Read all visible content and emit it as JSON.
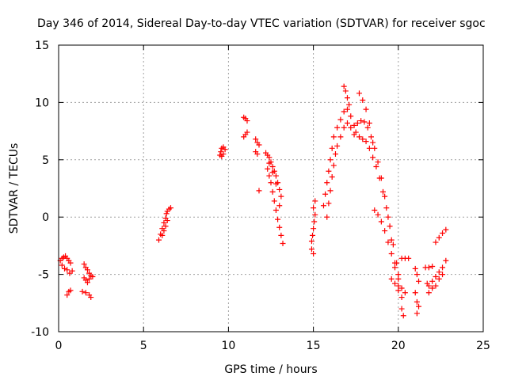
{
  "chart_data": {
    "type": "scatter",
    "title": "Day 346 of 2014, Sidereal Day-to-day VTEC variation (SDTVAR) for receiver sgoc",
    "xlabel": "GPS time / hours",
    "ylabel": "SDTVAR / TECUs",
    "xlim": [
      0,
      25
    ],
    "ylim": [
      -10,
      15
    ],
    "xticks": [
      0,
      5,
      10,
      15,
      20,
      25
    ],
    "yticks": [
      -10,
      -5,
      0,
      5,
      10,
      15
    ],
    "xtick_labels": [
      "0",
      "5",
      "10",
      "15",
      "20",
      "25"
    ],
    "ytick_labels": [
      "-10",
      "-5",
      "0",
      "5",
      "10",
      "15"
    ],
    "grid": true,
    "marker": "+",
    "color": "#ff0000",
    "series": [
      {
        "name": "SDTVAR",
        "points": [
          [
            0.1,
            -3.8
          ],
          [
            0.2,
            -3.6
          ],
          [
            0.3,
            -3.5
          ],
          [
            0.4,
            -3.4
          ],
          [
            0.5,
            -3.6
          ],
          [
            0.6,
            -3.8
          ],
          [
            0.7,
            -4.0
          ],
          [
            0.2,
            -4.2
          ],
          [
            0.35,
            -4.5
          ],
          [
            0.5,
            -4.6
          ],
          [
            0.65,
            -4.9
          ],
          [
            0.8,
            -4.7
          ],
          [
            0.5,
            -6.8
          ],
          [
            0.6,
            -6.5
          ],
          [
            0.7,
            -6.4
          ],
          [
            1.5,
            -4.1
          ],
          [
            1.6,
            -4.4
          ],
          [
            1.7,
            -4.6
          ],
          [
            1.8,
            -4.9
          ],
          [
            1.9,
            -5.1
          ],
          [
            2.0,
            -5.2
          ],
          [
            1.5,
            -5.3
          ],
          [
            1.6,
            -5.5
          ],
          [
            1.7,
            -5.7
          ],
          [
            1.8,
            -5.4
          ],
          [
            1.4,
            -6.5
          ],
          [
            1.6,
            -6.6
          ],
          [
            1.8,
            -6.8
          ],
          [
            1.9,
            -7.0
          ],
          [
            5.9,
            -2.0
          ],
          [
            6.0,
            -1.5
          ],
          [
            6.1,
            -1.0
          ],
          [
            6.2,
            -0.5
          ],
          [
            6.3,
            -0.1
          ],
          [
            6.35,
            0.3
          ],
          [
            6.4,
            0.5
          ],
          [
            6.5,
            0.7
          ],
          [
            6.6,
            0.8
          ],
          [
            6.1,
            -1.6
          ],
          [
            6.2,
            -1.2
          ],
          [
            6.3,
            -0.8
          ],
          [
            6.4,
            -0.3
          ],
          [
            9.5,
            5.4
          ],
          [
            9.55,
            5.7
          ],
          [
            9.6,
            6.0
          ],
          [
            9.7,
            6.1
          ],
          [
            9.8,
            5.9
          ],
          [
            9.6,
            5.3
          ],
          [
            9.7,
            5.5
          ],
          [
            10.9,
            8.7
          ],
          [
            11.0,
            8.6
          ],
          [
            11.1,
            8.4
          ],
          [
            10.9,
            7.0
          ],
          [
            11.0,
            7.2
          ],
          [
            11.1,
            7.4
          ],
          [
            11.6,
            6.8
          ],
          [
            11.7,
            6.5
          ],
          [
            11.8,
            6.3
          ],
          [
            11.6,
            5.7
          ],
          [
            11.7,
            5.5
          ],
          [
            11.8,
            2.3
          ],
          [
            12.2,
            5.6
          ],
          [
            12.3,
            5.4
          ],
          [
            12.4,
            5.2
          ],
          [
            12.5,
            4.8
          ],
          [
            12.6,
            4.4
          ],
          [
            12.7,
            4.0
          ],
          [
            12.8,
            3.6
          ],
          [
            12.9,
            3.0
          ],
          [
            13.0,
            2.4
          ],
          [
            13.1,
            1.8
          ],
          [
            12.3,
            4.2
          ],
          [
            12.4,
            3.6
          ],
          [
            12.5,
            3.0
          ],
          [
            12.6,
            2.2
          ],
          [
            12.7,
            1.4
          ],
          [
            12.8,
            0.6
          ],
          [
            12.9,
            -0.2
          ],
          [
            13.0,
            -0.9
          ],
          [
            13.1,
            -1.6
          ],
          [
            13.2,
            -2.3
          ],
          [
            12.4,
            4.7
          ],
          [
            12.6,
            3.9
          ],
          [
            12.8,
            2.9
          ],
          [
            13.0,
            1.0
          ],
          [
            14.9,
            -2.1
          ],
          [
            14.95,
            -1.6
          ],
          [
            15.0,
            -1.0
          ],
          [
            15.05,
            -0.4
          ],
          [
            15.1,
            0.2
          ],
          [
            15.0,
            0.8
          ],
          [
            15.1,
            1.4
          ],
          [
            14.9,
            -2.8
          ],
          [
            15.0,
            -3.2
          ],
          [
            15.6,
            1.0
          ],
          [
            15.7,
            2.0
          ],
          [
            15.8,
            3.0
          ],
          [
            15.9,
            4.0
          ],
          [
            16.0,
            5.0
          ],
          [
            16.1,
            6.0
          ],
          [
            16.2,
            7.0
          ],
          [
            16.4,
            7.8
          ],
          [
            16.6,
            8.5
          ],
          [
            16.8,
            9.2
          ],
          [
            17.0,
            9.4
          ],
          [
            17.2,
            8.8
          ],
          [
            17.4,
            8.0
          ],
          [
            15.8,
            0.0
          ],
          [
            15.9,
            1.2
          ],
          [
            16.0,
            2.3
          ],
          [
            16.1,
            3.5
          ],
          [
            16.2,
            4.5
          ],
          [
            16.3,
            5.5
          ],
          [
            16.4,
            6.2
          ],
          [
            16.6,
            7.0
          ],
          [
            16.8,
            7.8
          ],
          [
            17.0,
            8.2
          ],
          [
            17.2,
            7.8
          ],
          [
            17.4,
            7.2
          ],
          [
            16.8,
            11.4
          ],
          [
            16.9,
            11.0
          ],
          [
            17.0,
            10.4
          ],
          [
            17.1,
            9.8
          ],
          [
            17.5,
            7.4
          ],
          [
            17.7,
            7.0
          ],
          [
            17.9,
            6.8
          ],
          [
            18.1,
            6.6
          ],
          [
            18.3,
            6.0
          ],
          [
            18.5,
            5.2
          ],
          [
            18.7,
            4.4
          ],
          [
            18.9,
            3.4
          ],
          [
            19.1,
            2.2
          ],
          [
            19.3,
            0.8
          ],
          [
            19.5,
            -0.8
          ],
          [
            19.7,
            -2.4
          ],
          [
            19.9,
            -4.0
          ],
          [
            20.0,
            -5.0
          ],
          [
            17.6,
            8.2
          ],
          [
            17.8,
            8.4
          ],
          [
            18.0,
            8.3
          ],
          [
            18.2,
            7.8
          ],
          [
            18.4,
            7.0
          ],
          [
            18.6,
            6.0
          ],
          [
            18.8,
            4.8
          ],
          [
            19.0,
            3.4
          ],
          [
            19.2,
            1.8
          ],
          [
            19.4,
            0.0
          ],
          [
            19.6,
            -2.0
          ],
          [
            19.8,
            -4.0
          ],
          [
            20.0,
            -6.0
          ],
          [
            20.2,
            -8.0
          ],
          [
            20.3,
            -8.6
          ],
          [
            17.7,
            10.8
          ],
          [
            17.9,
            10.2
          ],
          [
            18.1,
            9.4
          ],
          [
            18.3,
            8.2
          ],
          [
            18.5,
            6.5
          ],
          [
            18.6,
            0.6
          ],
          [
            18.8,
            0.2
          ],
          [
            19.0,
            -0.4
          ],
          [
            19.2,
            -1.2
          ],
          [
            19.4,
            -2.2
          ],
          [
            19.6,
            -3.2
          ],
          [
            19.8,
            -4.4
          ],
          [
            20.0,
            -5.4
          ],
          [
            20.2,
            -6.2
          ],
          [
            20.4,
            -6.6
          ],
          [
            19.6,
            -5.4
          ],
          [
            19.8,
            -5.8
          ],
          [
            20.0,
            -6.4
          ],
          [
            20.2,
            -7.0
          ],
          [
            20.2,
            -3.6
          ],
          [
            20.4,
            -3.6
          ],
          [
            20.6,
            -3.6
          ],
          [
            21.0,
            -4.5
          ],
          [
            21.1,
            -5.0
          ],
          [
            21.2,
            -5.6
          ],
          [
            21.0,
            -6.6
          ],
          [
            21.1,
            -7.4
          ],
          [
            21.2,
            -7.8
          ],
          [
            21.1,
            -8.4
          ],
          [
            21.6,
            -4.4
          ],
          [
            21.8,
            -4.4
          ],
          [
            22.0,
            -4.3
          ],
          [
            21.7,
            -5.8
          ],
          [
            21.8,
            -6.0
          ],
          [
            22.0,
            -5.6
          ],
          [
            22.2,
            -5.2
          ],
          [
            22.4,
            -4.8
          ],
          [
            22.6,
            -4.4
          ],
          [
            22.8,
            -3.8
          ],
          [
            21.8,
            -6.6
          ],
          [
            22.0,
            -6.2
          ],
          [
            22.2,
            -6.0
          ],
          [
            22.4,
            -5.4
          ],
          [
            22.6,
            -5.0
          ],
          [
            22.2,
            -2.2
          ],
          [
            22.4,
            -1.8
          ],
          [
            22.6,
            -1.4
          ],
          [
            22.8,
            -1.1
          ]
        ]
      }
    ]
  }
}
